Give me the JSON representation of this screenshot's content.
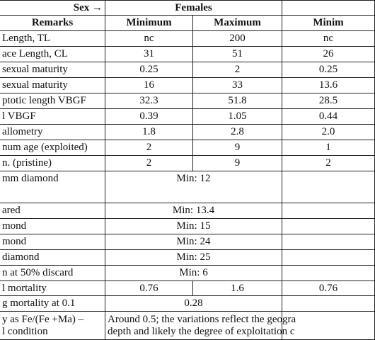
{
  "table": {
    "header": {
      "sex": "Sex →",
      "group": "Females"
    },
    "columns": [
      "Remarks",
      "Minimum",
      "Maximum",
      "Minim"
    ],
    "rows": [
      [
        "Length, TL",
        "nc",
        "200",
        "nc"
      ],
      [
        "ace Length, CL",
        "31",
        "51",
        "26"
      ],
      [
        "sexual maturity",
        "0.25",
        "2",
        "0.25"
      ],
      [
        "sexual maturity",
        "16",
        "33",
        "13.6"
      ],
      [
        "ptotic length VBGF",
        "32.3",
        "51.8",
        "28.5"
      ],
      [
        "l VBGF",
        "0.39",
        "1.05",
        "0.44"
      ],
      [
        "allometry",
        "1.8",
        "2.8",
        "2.0"
      ],
      [
        "num age (exploited)",
        "2",
        "9",
        "1"
      ],
      [
        "n. (pristine)",
        "2",
        "9",
        "2"
      ],
      [
        "mm diamond",
        "Min: 12"
      ],
      [
        "ared",
        "Min: 13.4"
      ],
      [
        "mond",
        "Min: 15"
      ],
      [
        "mond",
        "Min: 24"
      ],
      [
        "diamond",
        "Min: 25"
      ],
      [
        "n at 50% discard",
        "Min: 6"
      ],
      [
        "l mortality",
        "0.76",
        "1.6",
        "0.76"
      ],
      [
        "g mortality at 0.1",
        "0.28"
      ],
      [
        [
          "y as Fe/(Fe +Ma) –",
          "l condition"
        ],
        [
          "Around 0.5; the variations reflect the geogra",
          "depth and likely the degree of exploitation c"
        ]
      ]
    ]
  }
}
